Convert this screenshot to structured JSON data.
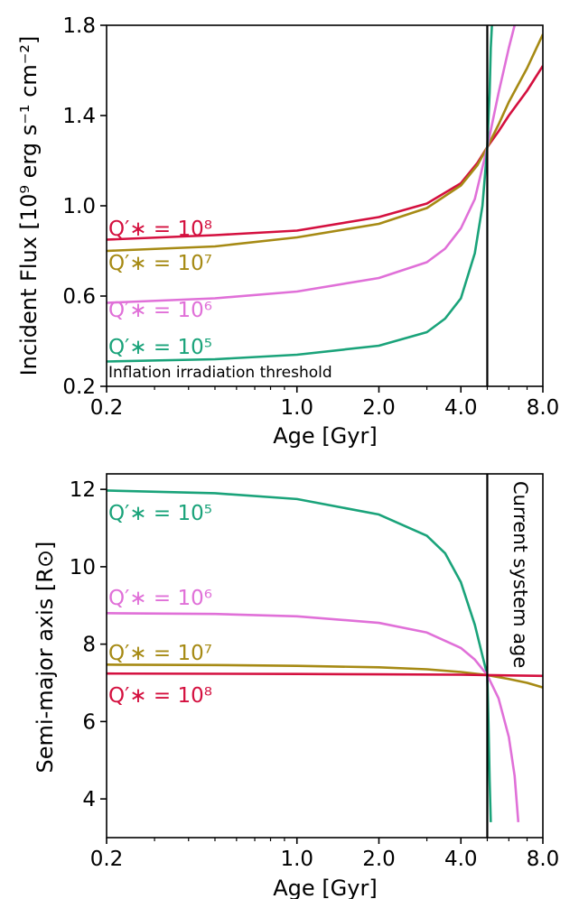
{
  "colors": {
    "q5": "#1aa37a",
    "q6": "#e070d8",
    "q7": "#a68a14",
    "q8": "#d4103f",
    "axis": "#000000"
  },
  "chart_data": [
    {
      "type": "line",
      "panel": "top",
      "xlabel": "Age [Gyr]",
      "ylabel": "Incident Flux [10⁹ erg s⁻¹ cm⁻²]",
      "xscale": "log",
      "xlim": [
        0.2,
        8.0
      ],
      "ylim": [
        0.2,
        1.8
      ],
      "xticks": [
        0.2,
        1.0,
        2.0,
        4.0,
        8.0
      ],
      "xtick_labels": [
        "0.2",
        "1.0",
        "2.0",
        "4.0",
        "8.0"
      ],
      "yticks": [
        0.2,
        0.6,
        1.0,
        1.4,
        1.8
      ],
      "ytick_labels": [
        "0.2",
        "0.6",
        "1.0",
        "1.4",
        "1.8"
      ],
      "grid": false,
      "series": [
        {
          "name": "Q′∗ = 10⁸",
          "color_key": "q8",
          "x": [
            0.2,
            0.5,
            1.0,
            2.0,
            3.0,
            4.0,
            4.6,
            5.0,
            5.5,
            6.0,
            7.0,
            8.0
          ],
          "y": [
            0.85,
            0.87,
            0.89,
            0.95,
            1.01,
            1.1,
            1.19,
            1.26,
            1.33,
            1.4,
            1.51,
            1.62
          ]
        },
        {
          "name": "Q′∗ = 10⁷",
          "color_key": "q7",
          "x": [
            0.2,
            0.5,
            1.0,
            2.0,
            3.0,
            4.0,
            4.6,
            5.0,
            5.5,
            6.0,
            7.0,
            8.0
          ],
          "y": [
            0.8,
            0.82,
            0.86,
            0.92,
            0.99,
            1.09,
            1.18,
            1.26,
            1.36,
            1.46,
            1.61,
            1.76
          ]
        },
        {
          "name": "Q′∗ = 10⁶",
          "color_key": "q6",
          "x": [
            0.2,
            0.5,
            1.0,
            2.0,
            3.0,
            3.5,
            4.0,
            4.5,
            5.0,
            5.5,
            6.0,
            6.3
          ],
          "y": [
            0.57,
            0.59,
            0.62,
            0.68,
            0.75,
            0.81,
            0.9,
            1.03,
            1.26,
            1.5,
            1.7,
            1.8
          ]
        },
        {
          "name": "Q′∗ = 10⁵",
          "color_key": "q5",
          "x": [
            0.2,
            0.5,
            1.0,
            2.0,
            3.0,
            3.5,
            4.0,
            4.5,
            4.8,
            5.0,
            5.1,
            5.15,
            5.2
          ],
          "y": [
            0.31,
            0.32,
            0.34,
            0.38,
            0.44,
            0.5,
            0.59,
            0.79,
            1.0,
            1.26,
            1.5,
            1.7,
            1.8
          ]
        }
      ],
      "series_labels": [
        "Q′∗ = 10⁸",
        "Q′∗ = 10⁷",
        "Q′∗ = 10⁶",
        "Q′∗ = 10⁵"
      ],
      "annotations": {
        "threshold_text": "Inflation irradiation threshold",
        "vline_x": 5.0
      }
    },
    {
      "type": "line",
      "panel": "bottom",
      "xlabel": "Age [Gyr]",
      "ylabel": "Semi-major axis [R⊙]",
      "xscale": "log",
      "xlim": [
        0.2,
        8.0
      ],
      "ylim": [
        3.0,
        12.4
      ],
      "xticks": [
        0.2,
        1.0,
        2.0,
        4.0,
        8.0
      ],
      "xtick_labels": [
        "0.2",
        "1.0",
        "2.0",
        "4.0",
        "8.0"
      ],
      "yticks": [
        4,
        6,
        8,
        10,
        12
      ],
      "ytick_labels": [
        "4",
        "6",
        "8",
        "10",
        "12"
      ],
      "grid": false,
      "series": [
        {
          "name": "Q′∗ = 10⁵",
          "color_key": "q5",
          "x": [
            0.2,
            0.5,
            1.0,
            2.0,
            3.0,
            3.5,
            4.0,
            4.5,
            4.8,
            5.0,
            5.05,
            5.1,
            5.15
          ],
          "y": [
            11.97,
            11.9,
            11.75,
            11.35,
            10.8,
            10.35,
            9.6,
            8.5,
            7.7,
            7.2,
            6.0,
            4.5,
            3.4
          ]
        },
        {
          "name": "Q′∗ = 10⁶",
          "color_key": "q6",
          "x": [
            0.2,
            0.5,
            1.0,
            2.0,
            3.0,
            4.0,
            4.5,
            5.0,
            5.5,
            6.0,
            6.3,
            6.5
          ],
          "y": [
            8.8,
            8.78,
            8.72,
            8.55,
            8.3,
            7.9,
            7.6,
            7.2,
            6.6,
            5.6,
            4.6,
            3.4
          ]
        },
        {
          "name": "Q′∗ = 10⁷",
          "color_key": "q7",
          "x": [
            0.2,
            0.5,
            1.0,
            2.0,
            3.0,
            4.0,
            5.0,
            6.0,
            7.0,
            8.0
          ],
          "y": [
            7.47,
            7.46,
            7.44,
            7.4,
            7.35,
            7.28,
            7.2,
            7.1,
            7.0,
            6.88
          ]
        },
        {
          "name": "Q′∗ = 10⁸",
          "color_key": "q8",
          "x": [
            0.2,
            1.0,
            2.0,
            4.0,
            5.0,
            6.0,
            8.0
          ],
          "y": [
            7.24,
            7.23,
            7.22,
            7.21,
            7.2,
            7.19,
            7.18
          ]
        }
      ],
      "series_labels": [
        "Q′∗ = 10⁵",
        "Q′∗ = 10⁶",
        "Q′∗ = 10⁷",
        "Q′∗ = 10⁸"
      ],
      "annotations": {
        "vline_text": "Current system age",
        "vline_x": 5.0
      }
    }
  ]
}
